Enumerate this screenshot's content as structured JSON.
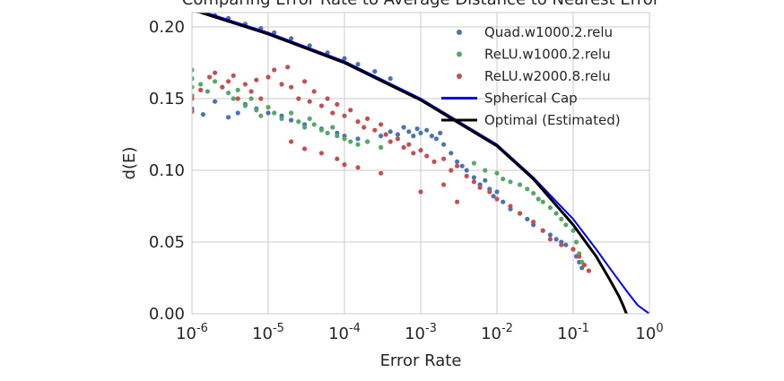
{
  "chart_data": {
    "type": "scatter",
    "title": "Comparing Error Rate to Average Distance to Nearest Error",
    "xlabel": "Error Rate",
    "ylabel": "d(E)",
    "xscale": "log",
    "xlim": [
      1e-06,
      1
    ],
    "ylim": [
      0,
      0.21
    ],
    "grid": true,
    "legend_position": "top-right",
    "x_ticks": [
      {
        "value": 1e-06,
        "base": "10",
        "exp": "-6"
      },
      {
        "value": 1e-05,
        "base": "10",
        "exp": "-5"
      },
      {
        "value": 0.0001,
        "base": "10",
        "exp": "-4"
      },
      {
        "value": 0.001,
        "base": "10",
        "exp": "-3"
      },
      {
        "value": 0.01,
        "base": "10",
        "exp": "-2"
      },
      {
        "value": 0.1,
        "base": "10",
        "exp": "-1"
      },
      {
        "value": 1,
        "base": "10",
        "exp": "0"
      }
    ],
    "y_ticks": [
      {
        "value": 0.0,
        "label": "0.00"
      },
      {
        "value": 0.05,
        "label": "0.05"
      },
      {
        "value": 0.1,
        "label": "0.10"
      },
      {
        "value": 0.15,
        "label": "0.15"
      },
      {
        "value": 0.2,
        "label": "0.20"
      }
    ],
    "scatter_series": [
      {
        "name": "Quad.w1000.2.relu",
        "color": "#4c72b0",
        "points": [
          [
            1e-06,
            0.152
          ],
          [
            1e-06,
            0.143
          ],
          [
            1.4e-06,
            0.139
          ],
          [
            2e-06,
            0.148
          ],
          [
            3e-06,
            0.137
          ],
          [
            4e-06,
            0.14
          ],
          [
            5e-06,
            0.146
          ],
          [
            7e-06,
            0.143
          ],
          [
            1e-05,
            0.14
          ],
          [
            1.5e-05,
            0.138
          ],
          [
            2e-05,
            0.135
          ],
          [
            3e-05,
            0.132
          ],
          [
            5e-05,
            0.129
          ],
          [
            8e-05,
            0.126
          ],
          [
            0.0001,
            0.124
          ],
          [
            0.00015,
            0.122
          ],
          [
            0.0002,
            0.12
          ],
          [
            0.0003,
            0.124
          ],
          [
            0.0004,
            0.127
          ],
          [
            0.0005,
            0.125
          ],
          [
            0.0006,
            0.13
          ],
          [
            0.0007,
            0.127
          ],
          [
            0.0008,
            0.124
          ],
          [
            0.0009,
            0.129
          ],
          [
            0.001,
            0.126
          ],
          [
            0.0012,
            0.128
          ],
          [
            0.0014,
            0.124
          ],
          [
            0.0016,
            0.122
          ],
          [
            0.0018,
            0.126
          ],
          [
            0.002,
            0.118
          ],
          [
            0.0025,
            0.112
          ],
          [
            0.003,
            0.106
          ],
          [
            0.0035,
            0.103
          ],
          [
            0.004,
            0.1
          ],
          [
            0.005,
            0.095
          ],
          [
            0.006,
            0.09
          ],
          [
            0.007,
            0.093
          ],
          [
            0.008,
            0.087
          ],
          [
            0.009,
            0.082
          ],
          [
            0.01,
            0.085
          ],
          [
            0.012,
            0.078
          ],
          [
            0.015,
            0.073
          ],
          [
            0.02,
            0.07
          ],
          [
            0.025,
            0.066
          ],
          [
            0.03,
            0.062
          ],
          [
            0.04,
            0.058
          ],
          [
            0.05,
            0.055
          ],
          [
            0.06,
            0.052
          ],
          [
            0.07,
            0.05
          ],
          [
            0.08,
            0.048
          ],
          [
            0.1,
            0.045
          ],
          [
            0.11,
            0.04
          ],
          [
            0.12,
            0.036
          ],
          [
            0.13,
            0.032
          ],
          [
            1.2e-06,
            0.211
          ],
          [
            1.5e-06,
            0.21
          ],
          [
            2e-06,
            0.208
          ],
          [
            3e-06,
            0.206
          ],
          [
            5e-06,
            0.202
          ],
          [
            8e-06,
            0.199
          ],
          [
            1.2e-05,
            0.196
          ],
          [
            2e-05,
            0.192
          ],
          [
            3.5e-05,
            0.187
          ],
          [
            6e-05,
            0.182
          ],
          [
            0.0001,
            0.178
          ],
          [
            0.00015,
            0.174
          ],
          [
            0.00025,
            0.169
          ],
          [
            0.0004,
            0.164
          ]
        ]
      },
      {
        "name": "ReLU.w1000.2.relu",
        "color": "#55a868",
        "points": [
          [
            1e-06,
            0.17
          ],
          [
            1e-06,
            0.164
          ],
          [
            1e-06,
            0.158
          ],
          [
            1e-06,
            0.152
          ],
          [
            1.3e-06,
            0.16
          ],
          [
            1.6e-06,
            0.155
          ],
          [
            2e-06,
            0.162
          ],
          [
            2.5e-06,
            0.158
          ],
          [
            3e-06,
            0.154
          ],
          [
            3.5e-06,
            0.15
          ],
          [
            4e-06,
            0.156
          ],
          [
            5e-06,
            0.145
          ],
          [
            6e-06,
            0.15
          ],
          [
            7e-06,
            0.142
          ],
          [
            8e-06,
            0.138
          ],
          [
            1e-05,
            0.144
          ],
          [
            1.2e-05,
            0.14
          ],
          [
            1.5e-05,
            0.136
          ],
          [
            2e-05,
            0.14
          ],
          [
            2.5e-05,
            0.134
          ],
          [
            3e-05,
            0.13
          ],
          [
            3.5e-05,
            0.136
          ],
          [
            4e-05,
            0.132
          ],
          [
            5e-05,
            0.128
          ],
          [
            6e-05,
            0.126
          ],
          [
            7e-05,
            0.13
          ],
          [
            8e-05,
            0.124
          ],
          [
            0.0001,
            0.122
          ],
          [
            0.00012,
            0.12
          ],
          [
            0.00015,
            0.118
          ],
          [
            0.0002,
            0.12
          ],
          [
            0.0003,
            0.116
          ],
          [
            0.005,
            0.105
          ],
          [
            0.007,
            0.1
          ],
          [
            0.01,
            0.098
          ],
          [
            0.012,
            0.094
          ],
          [
            0.015,
            0.092
          ],
          [
            0.02,
            0.09
          ],
          [
            0.025,
            0.087
          ],
          [
            0.03,
            0.084
          ],
          [
            0.035,
            0.08
          ],
          [
            0.04,
            0.078
          ],
          [
            0.05,
            0.074
          ],
          [
            0.06,
            0.07
          ],
          [
            0.07,
            0.066
          ],
          [
            0.08,
            0.062
          ],
          [
            0.1,
            0.058
          ],
          [
            0.11,
            0.05
          ],
          [
            0.12,
            0.042
          ],
          [
            0.13,
            0.036
          ]
        ]
      },
      {
        "name": "ReLU.w2000.8.relu",
        "color": "#c44e52",
        "points": [
          [
            1e-06,
            0.15
          ],
          [
            1e-06,
            0.141
          ],
          [
            1.3e-06,
            0.156
          ],
          [
            1.7e-06,
            0.165
          ],
          [
            2e-06,
            0.168
          ],
          [
            2.5e-06,
            0.158
          ],
          [
            3e-06,
            0.162
          ],
          [
            3.5e-06,
            0.166
          ],
          [
            4e-06,
            0.15
          ],
          [
            5e-06,
            0.16
          ],
          [
            6e-06,
            0.155
          ],
          [
            7e-06,
            0.163
          ],
          [
            8e-06,
            0.15
          ],
          [
            1e-05,
            0.165
          ],
          [
            1.2e-05,
            0.17
          ],
          [
            1.5e-05,
            0.16
          ],
          [
            1.8e-05,
            0.172
          ],
          [
            2e-05,
            0.158
          ],
          [
            2.5e-05,
            0.15
          ],
          [
            3e-05,
            0.162
          ],
          [
            3.5e-05,
            0.148
          ],
          [
            4e-05,
            0.155
          ],
          [
            5e-05,
            0.145
          ],
          [
            6e-05,
            0.15
          ],
          [
            7e-05,
            0.14
          ],
          [
            8e-05,
            0.146
          ],
          [
            0.0001,
            0.138
          ],
          [
            0.00012,
            0.142
          ],
          [
            0.00015,
            0.134
          ],
          [
            0.00018,
            0.13
          ],
          [
            0.0002,
            0.136
          ],
          [
            0.00025,
            0.128
          ],
          [
            0.0003,
            0.132
          ],
          [
            0.00035,
            0.125
          ],
          [
            0.0004,
            0.12
          ],
          [
            0.0005,
            0.122
          ],
          [
            0.0006,
            0.116
          ],
          [
            0.0007,
            0.118
          ],
          [
            0.0008,
            0.112
          ],
          [
            0.001,
            0.114
          ],
          [
            0.0012,
            0.11
          ],
          [
            0.0015,
            0.106
          ],
          [
            0.002,
            0.108
          ],
          [
            0.0025,
            0.1
          ],
          [
            0.003,
            0.103
          ],
          [
            0.004,
            0.096
          ],
          [
            0.005,
            0.092
          ],
          [
            0.006,
            0.088
          ],
          [
            0.008,
            0.085
          ],
          [
            0.01,
            0.08
          ],
          [
            0.015,
            0.075
          ],
          [
            0.02,
            0.07
          ],
          [
            0.03,
            0.064
          ],
          [
            0.04,
            0.058
          ],
          [
            0.05,
            0.052
          ],
          [
            0.07,
            0.048
          ],
          [
            0.1,
            0.045
          ],
          [
            0.12,
            0.04
          ],
          [
            0.14,
            0.034
          ],
          [
            0.16,
            0.03
          ],
          [
            2e-05,
            0.12
          ],
          [
            3e-05,
            0.115
          ],
          [
            5e-05,
            0.112
          ],
          [
            8e-05,
            0.108
          ],
          [
            0.0001,
            0.104
          ],
          [
            0.00015,
            0.102
          ],
          [
            0.0003,
            0.098
          ],
          [
            0.001,
            0.085
          ],
          [
            0.002,
            0.09
          ],
          [
            0.003,
            0.078
          ]
        ]
      }
    ],
    "line_series": [
      {
        "name": "Spherical Cap",
        "color": "#0000ee",
        "x": [
          1e-06,
          1e-05,
          0.0001,
          0.001,
          0.01,
          0.03,
          0.1,
          0.2,
          0.3,
          0.5,
          0.7,
          1
        ],
        "y": [
          0.213,
          0.196,
          0.176,
          0.15,
          0.118,
          0.095,
          0.066,
          0.045,
          0.032,
          0.016,
          0.006,
          0.0
        ]
      },
      {
        "name": "Optimal (Estimated)",
        "color": "#000000",
        "x": [
          1e-06,
          1e-05,
          0.0001,
          0.001,
          0.01,
          0.03,
          0.1,
          0.2,
          0.3,
          0.4,
          0.45,
          0.5
        ],
        "y": [
          0.212,
          0.195,
          0.175,
          0.149,
          0.117,
          0.094,
          0.062,
          0.04,
          0.024,
          0.012,
          0.006,
          0.0
        ]
      }
    ],
    "legend": [
      {
        "label": "Quad.w1000.2.relu",
        "kind": "marker",
        "color": "#4c72b0"
      },
      {
        "label": "ReLU.w1000.2.relu",
        "kind": "marker",
        "color": "#55a868"
      },
      {
        "label": "ReLU.w2000.8.relu",
        "kind": "marker",
        "color": "#c44e52"
      },
      {
        "label": "Spherical Cap",
        "kind": "line",
        "color": "#0000ee"
      },
      {
        "label": "Optimal (Estimated)",
        "kind": "line",
        "color": "#000000"
      }
    ]
  }
}
